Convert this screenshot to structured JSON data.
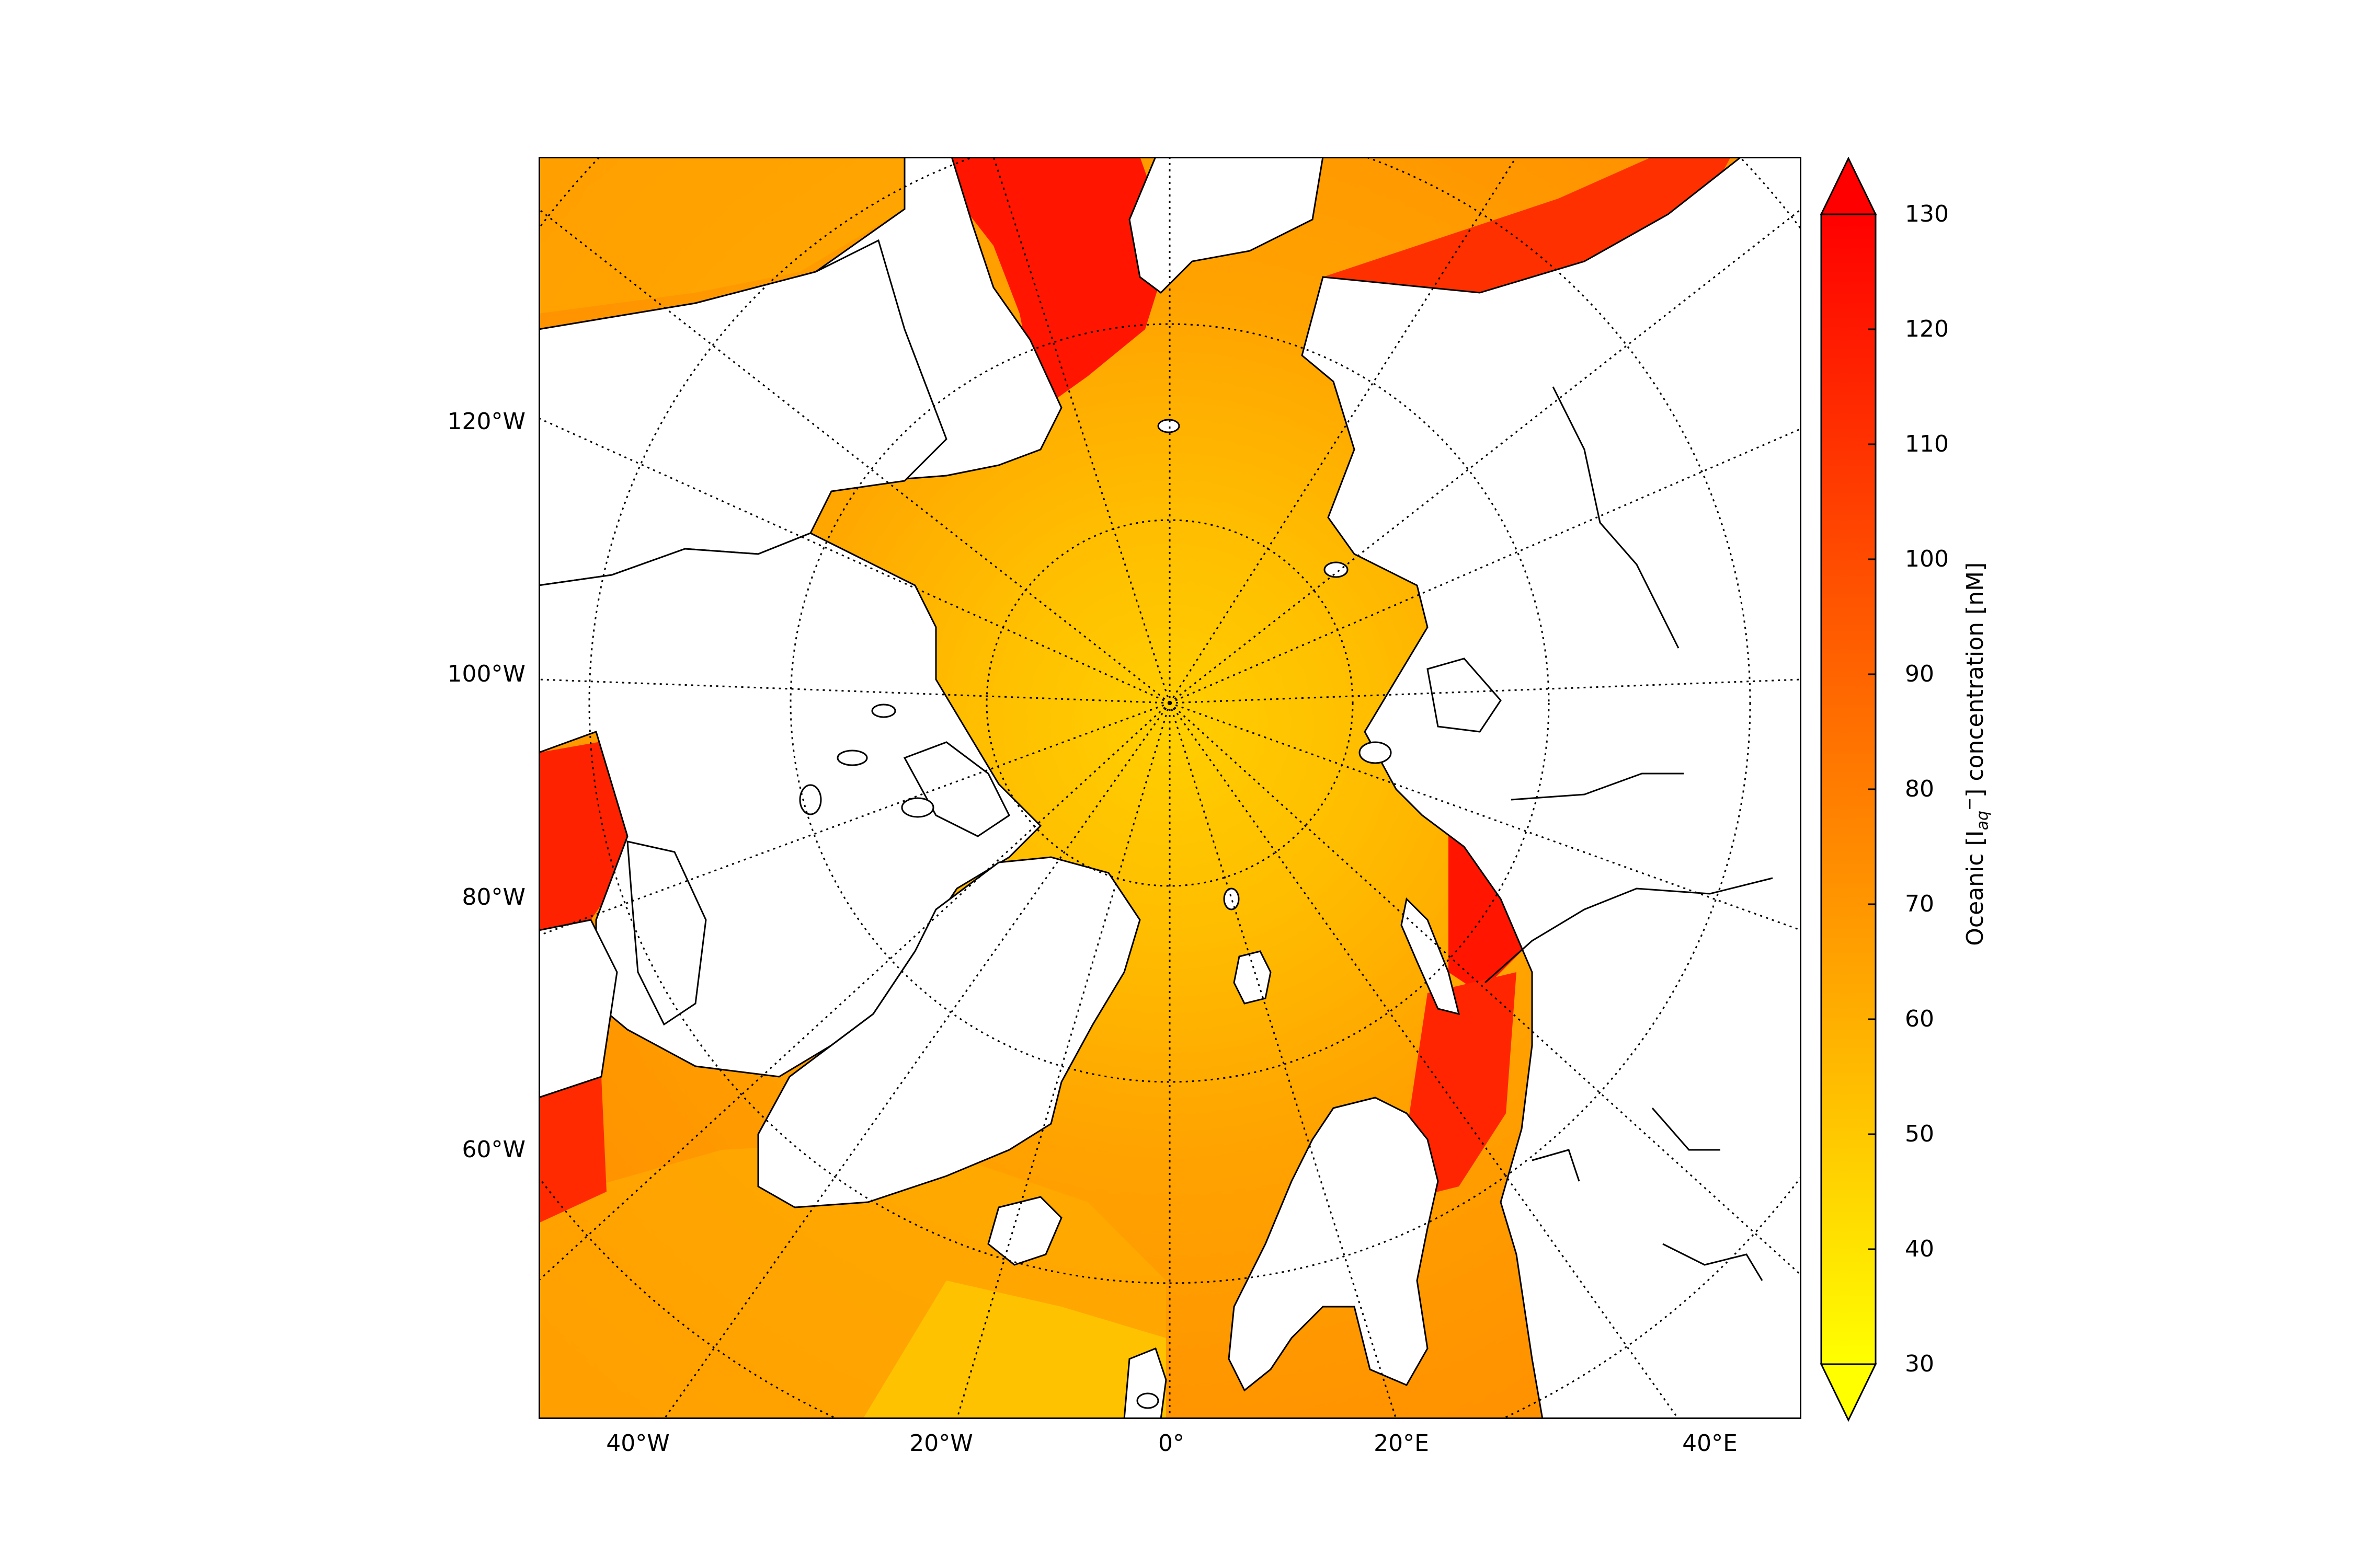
{
  "map": {
    "lon_labels_left": [
      "120°W",
      "100°W",
      "80°W",
      "60°W"
    ],
    "lon_labels_bottom": [
      "40°W",
      "20°W",
      "0°",
      "20°E",
      "40°E"
    ]
  },
  "colorbar": {
    "label_main": "Oceanic [I",
    "label_sub": "aq",
    "label_sup": "−",
    "label_tail": "] concentration [nM]",
    "ticks": [
      "130",
      "120",
      "110",
      "100",
      "90",
      "80",
      "70",
      "60",
      "50",
      "40",
      "30"
    ],
    "min": 30,
    "max": 130,
    "extend": "both",
    "colormap": [
      "#ffff00",
      "#ffc800",
      "#ff9600",
      "#ff6400",
      "#ff3200",
      "#ff0000"
    ]
  },
  "colors": {
    "ocean_base": "#ff9d00",
    "arctic_center": "#ffcc00",
    "coastal_high": "#ff1a00",
    "land": "#ffffff",
    "coastline": "#000000"
  }
}
